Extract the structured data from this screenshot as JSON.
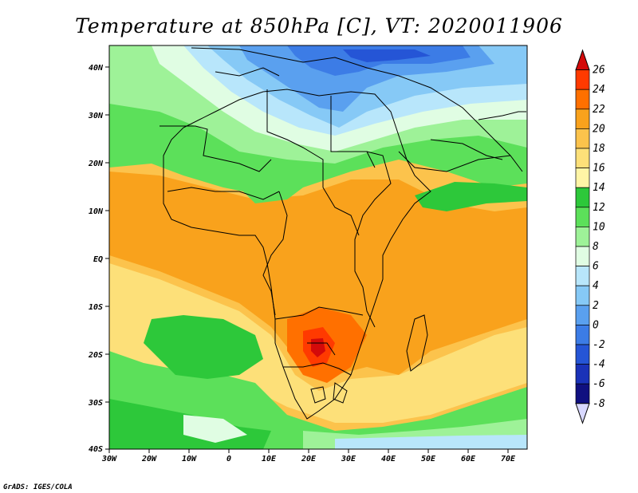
{
  "title": "Temperature at 850hPa [C], VT: 2020011906",
  "credit": "GrADS: IGES/COLA",
  "lon_labels": [
    "30W",
    "20W",
    "10W",
    "0",
    "10E",
    "20E",
    "30E",
    "40E",
    "50E",
    "60E",
    "70E"
  ],
  "lat_labels": [
    "40N",
    "30N",
    "20N",
    "10N",
    "EQ",
    "10S",
    "20S",
    "30S",
    "40S"
  ],
  "colorbar": {
    "labels": [
      "26",
      "24",
      "22",
      "20",
      "18",
      "16",
      "14",
      "12",
      "10",
      "8",
      "6",
      "4",
      "2",
      "0",
      "-2",
      "-4",
      "-6",
      "-8"
    ],
    "colors": [
      "#d40a0a",
      "#ff3a00",
      "#ff7000",
      "#f9a21c",
      "#fcc34c",
      "#fde079",
      "#fff5a6",
      "#2dc83a",
      "#5ce05a",
      "#9ef298",
      "#e0fde3",
      "#b8e6fb",
      "#86c9f6",
      "#5aa0ef",
      "#3c7ce6",
      "#2555d6",
      "#1a32b8",
      "#101080",
      "#d8d8ff"
    ]
  },
  "chart_data": {
    "type": "heatmap",
    "title": "Temperature at 850hPa [C], VT: 2020011906",
    "xlim": [
      -30,
      75
    ],
    "ylim": [
      -40,
      45
    ],
    "x_ticks": [
      "30W",
      "20W",
      "10W",
      "0",
      "10E",
      "20E",
      "30E",
      "40E",
      "50E",
      "60E",
      "70E"
    ],
    "y_ticks": [
      "40N",
      "30N",
      "20N",
      "10N",
      "EQ",
      "10S",
      "20S",
      "30S",
      "40S"
    ],
    "color_levels": [
      -8,
      -6,
      -4,
      -2,
      0,
      2,
      4,
      6,
      8,
      10,
      12,
      14,
      16,
      18,
      20,
      22,
      24,
      26
    ]
  }
}
